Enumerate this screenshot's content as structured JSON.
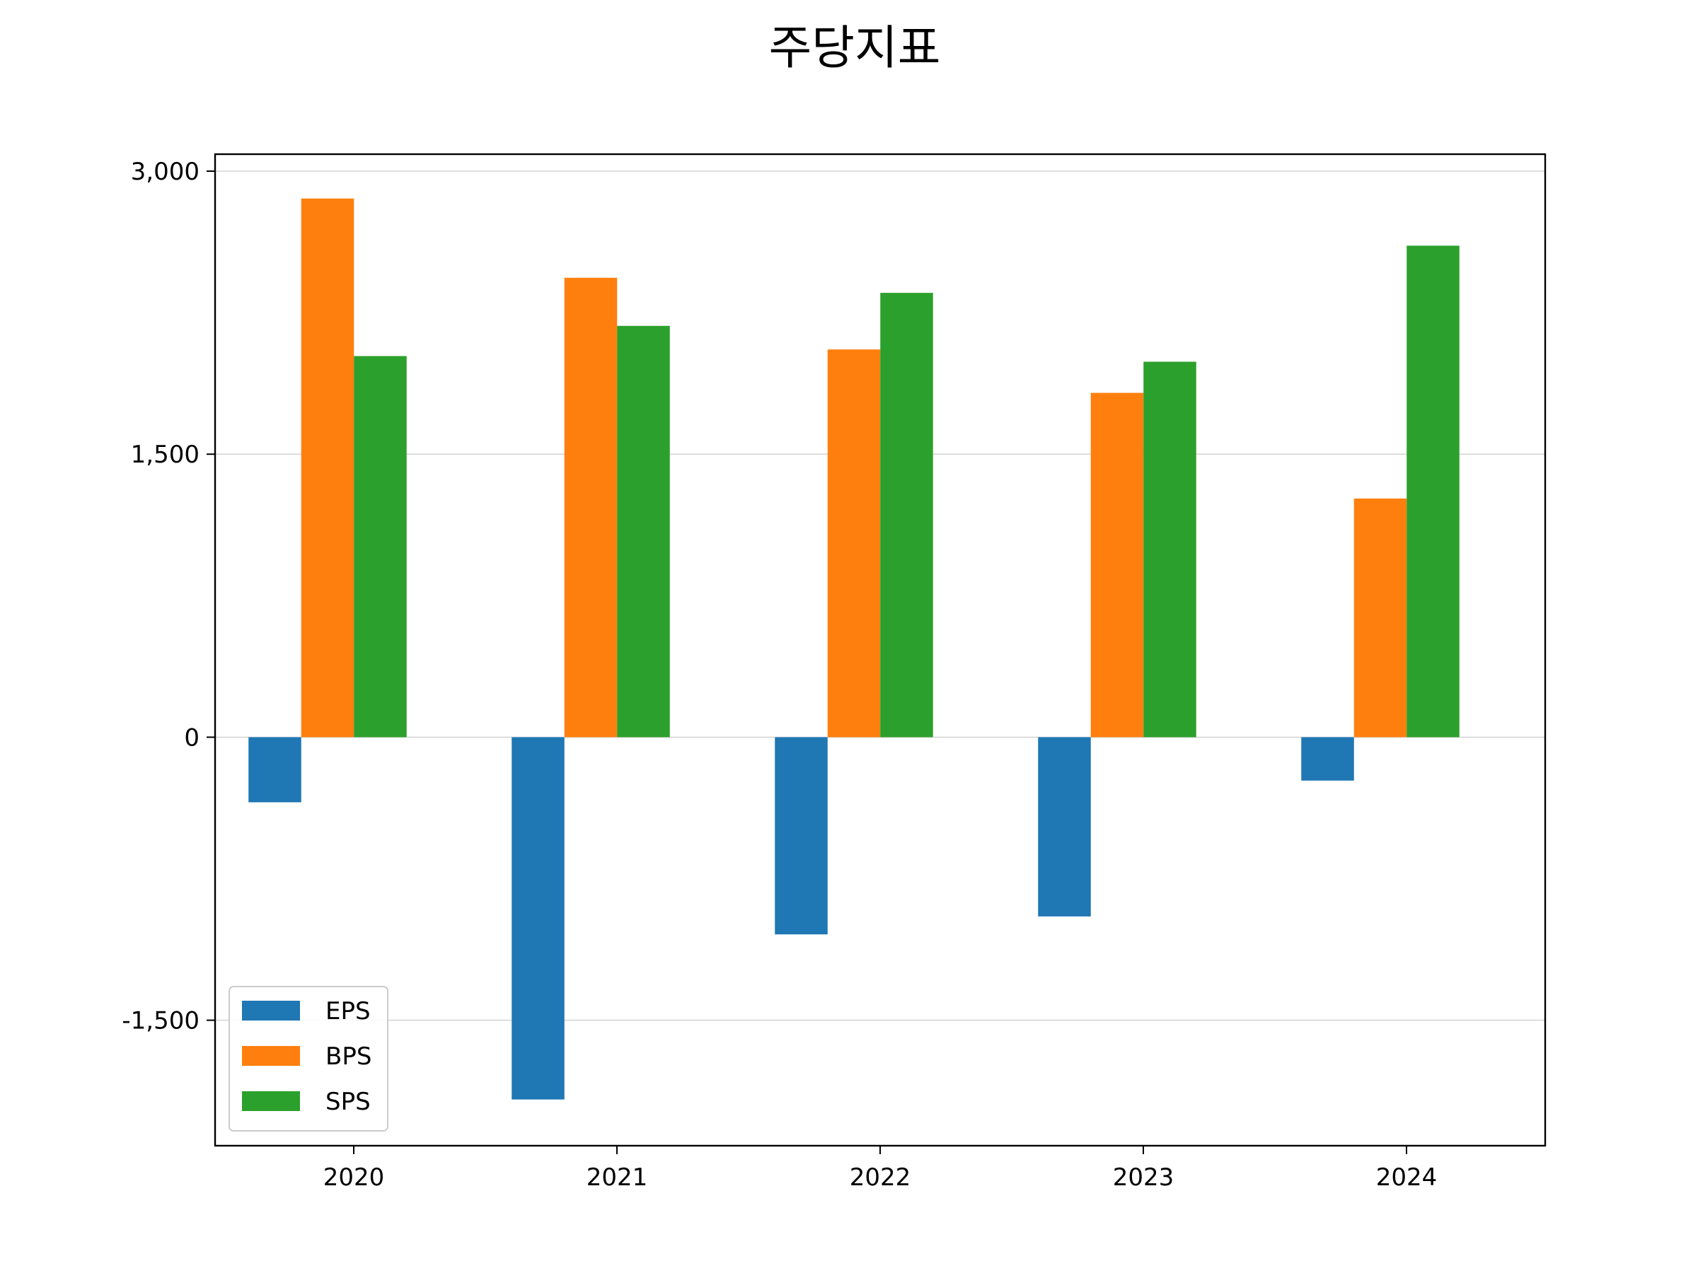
{
  "chart_data": {
    "type": "bar",
    "title": "주당지표",
    "xlabel": "",
    "ylabel": "",
    "categories": [
      "2020",
      "2021",
      "2022",
      "2023",
      "2024"
    ],
    "series": [
      {
        "name": "EPS",
        "color": "#1f77b4",
        "values": [
          -345,
          -1920,
          -1045,
          -950,
          -230
        ]
      },
      {
        "name": "BPS",
        "color": "#ff7f0e",
        "values": [
          2855,
          2435,
          2055,
          1825,
          1265
        ]
      },
      {
        "name": "SPS",
        "color": "#2ca02c",
        "values": [
          2020,
          2180,
          2355,
          1990,
          2605
        ]
      }
    ],
    "yticks": [
      -1500,
      0,
      1500,
      3000
    ],
    "ytick_labels": [
      "-1,500",
      "0",
      "1,500",
      "3,000"
    ],
    "ylim": [
      -2165,
      3090
    ],
    "grid": "y",
    "legend_position": "lower-left"
  }
}
